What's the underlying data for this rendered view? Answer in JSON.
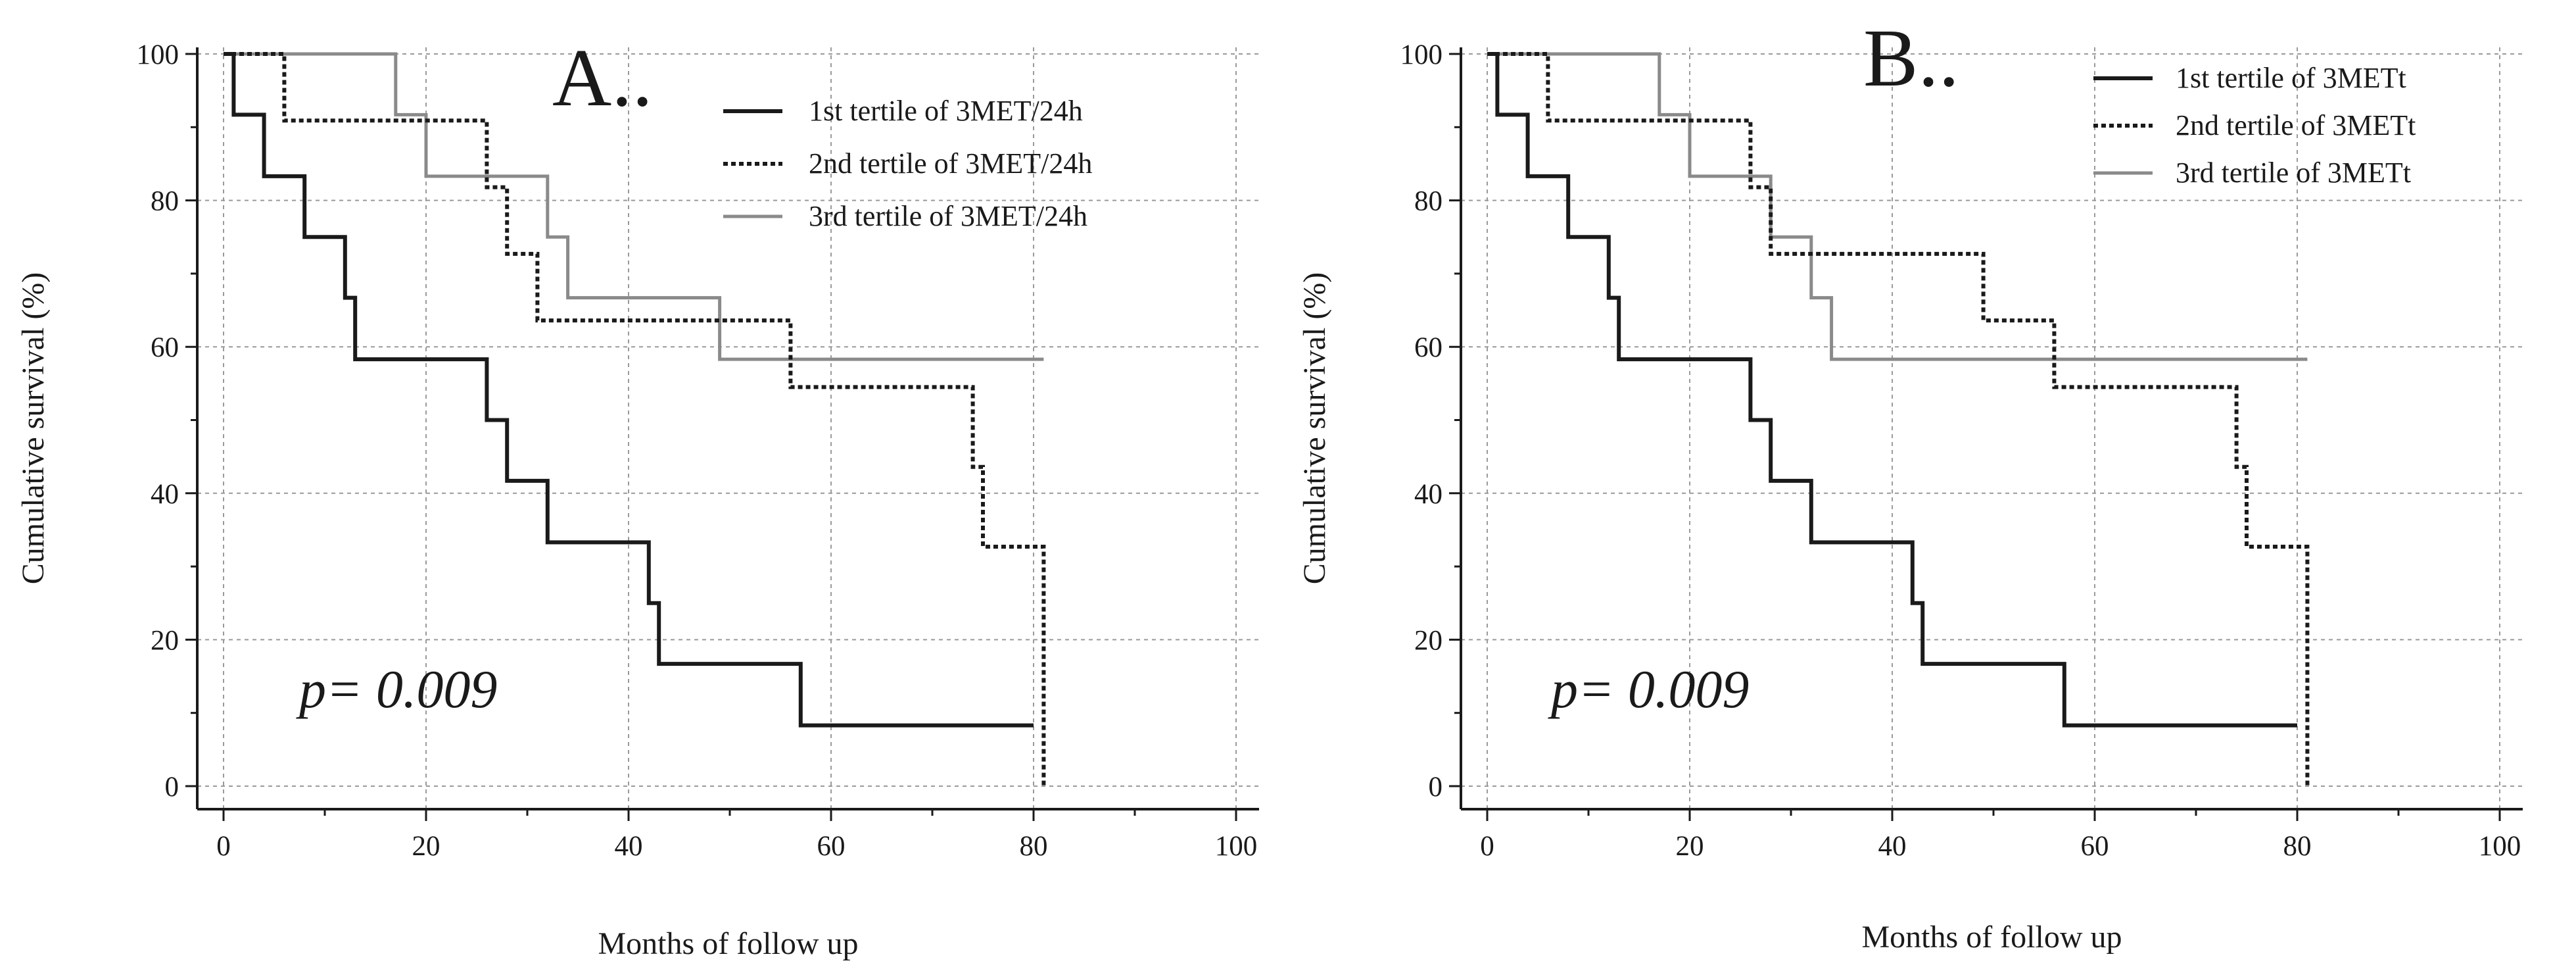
{
  "colors": {
    "series_1": "#1a1a1a",
    "series_2": "#1a1a1a",
    "series_3": "#8a8a8a"
  },
  "chart_data": [
    {
      "type": "line",
      "subtype": "kaplan-meier-step",
      "panel_label": "A..",
      "xlabel": "Months of follow up",
      "ylabel": "Cumulative survival (%)",
      "xlim": [
        0,
        100
      ],
      "ylim": [
        0,
        100
      ],
      "xticks": [
        0,
        20,
        40,
        60,
        80,
        100
      ],
      "yticks": [
        0,
        20,
        40,
        60,
        80,
        100
      ],
      "grid": true,
      "legend_position": "top-right",
      "annotation": "p= 0.009",
      "series": [
        {
          "name": "1st tertile of 3MET/24h",
          "style": "solid",
          "x": [
            0,
            1,
            4,
            8,
            12,
            13,
            26,
            28,
            32,
            42,
            43,
            44,
            57,
            80
          ],
          "y": [
            100,
            91.7,
            83.3,
            75,
            66.7,
            58.3,
            50,
            41.7,
            33.3,
            25,
            16.7,
            16.7,
            8.3,
            8.3
          ]
        },
        {
          "name": "2nd tertile of 3MET/24h",
          "style": "dotted",
          "x": [
            0,
            6,
            26,
            28,
            31,
            56,
            74,
            75,
            81,
            81
          ],
          "y": [
            100,
            90.9,
            81.8,
            72.7,
            63.6,
            54.5,
            43.6,
            32.7,
            0,
            0
          ],
          "end_x": 81
        },
        {
          "name": "3rd tertile of 3MET/24h",
          "style": "gray",
          "x": [
            0,
            17,
            20,
            26,
            32,
            34,
            49,
            81
          ],
          "y": [
            100,
            91.7,
            83.3,
            83.3,
            75,
            66.7,
            58.3,
            58.3
          ]
        }
      ]
    },
    {
      "type": "line",
      "subtype": "kaplan-meier-step",
      "panel_label": "B..",
      "xlabel": "Months of follow up",
      "ylabel": "Cumulative survival (%)",
      "xlim": [
        0,
        100
      ],
      "ylim": [
        0,
        100
      ],
      "xticks": [
        0,
        20,
        40,
        60,
        80,
        100
      ],
      "yticks": [
        0,
        20,
        40,
        60,
        80,
        100
      ],
      "grid": true,
      "legend_position": "top-right",
      "annotation": "p= 0.009",
      "series": [
        {
          "name": "1st tertile of 3METt",
          "style": "solid",
          "x": [
            0,
            1,
            4,
            8,
            12,
            13,
            26,
            28,
            32,
            42,
            43,
            44,
            57,
            80
          ],
          "y": [
            100,
            91.7,
            83.3,
            75,
            66.7,
            58.3,
            50,
            41.7,
            33.3,
            25,
            16.7,
            16.7,
            8.3,
            8.3
          ]
        },
        {
          "name": "2nd tertile of 3METt",
          "style": "dotted",
          "x": [
            0,
            6,
            26,
            28,
            49,
            56,
            74,
            75,
            81,
            81
          ],
          "y": [
            100,
            90.9,
            81.8,
            72.7,
            63.6,
            54.5,
            43.6,
            32.7,
            0,
            0
          ]
        },
        {
          "name": "3rd tertile of 3METt",
          "style": "gray",
          "x": [
            0,
            17,
            20,
            28,
            31,
            32,
            34,
            81
          ],
          "y": [
            100,
            91.7,
            83.3,
            75,
            75,
            66.7,
            58.3,
            58.3
          ]
        }
      ]
    }
  ]
}
